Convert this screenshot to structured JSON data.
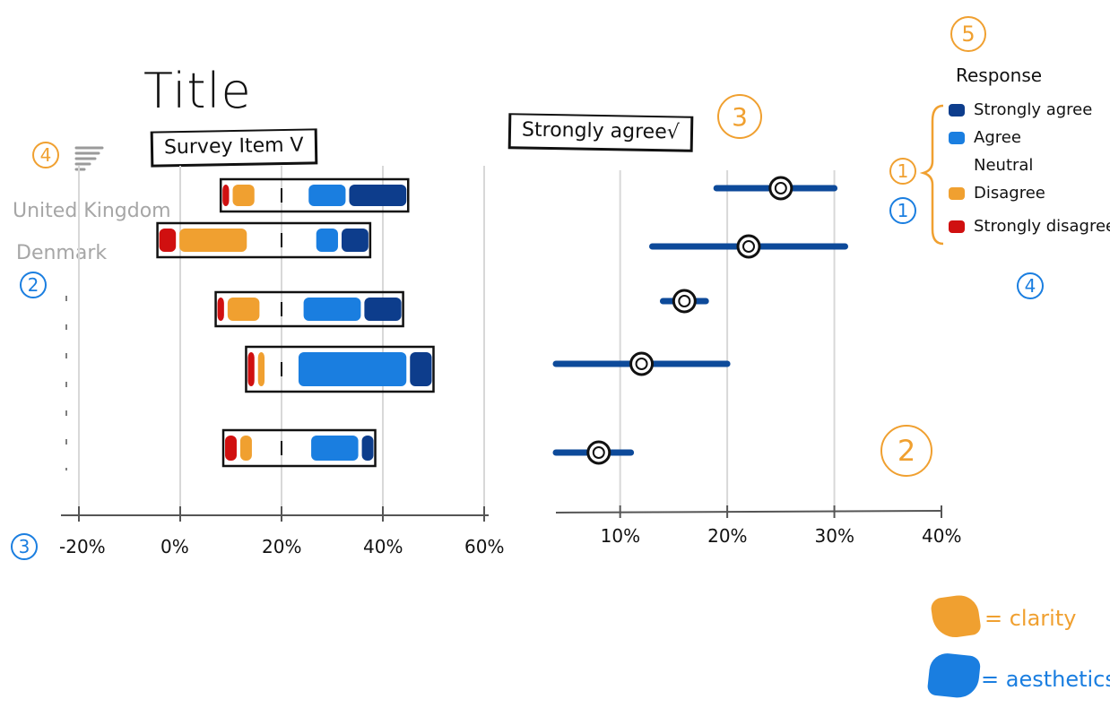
{
  "title": "Title",
  "survey_dropdown": "Survey Item V",
  "response_dropdown": "Strongly agree√",
  "countries": [
    "United Kingdom",
    "Denmark"
  ],
  "legend": {
    "title": "Response",
    "items": [
      {
        "label": "Strongly agree",
        "color": "#0d3d8c"
      },
      {
        "label": "Agree",
        "color": "#1a7ee0"
      },
      {
        "label": "Neutral",
        "color": "#ffffff"
      },
      {
        "label": "Disagree",
        "color": "#f0a030"
      },
      {
        "label": "Strongly disagree",
        "color": "#d01010"
      }
    ]
  },
  "left_axis_ticks": [
    "-20%",
    "0%",
    "20%",
    "40%",
    "60%"
  ],
  "right_axis_ticks": [
    "10%",
    "20%",
    "30%",
    "40%"
  ],
  "annotations": {
    "orange": [
      "4",
      "3",
      "1",
      "2",
      "5"
    ],
    "blue": [
      "2",
      "3",
      "1",
      "4"
    ]
  },
  "key": {
    "clarity": "= clarity",
    "aesthetics": "= aesthetics",
    "clarity_color": "#f0a030",
    "aesthetics_color": "#1a7ee0"
  },
  "chart_data": [
    {
      "type": "bar",
      "categories": [
        "United Kingdom",
        "Denmark",
        "",
        "",
        ""
      ],
      "series": [
        {
          "name": "Strongly disagree",
          "values": [
            2,
            4,
            2,
            2,
            3
          ]
        },
        {
          "name": "Disagree",
          "values": [
            5,
            14,
            7,
            2,
            3
          ]
        },
        {
          "name": "Neutral",
          "values": [
            10,
            13,
            8,
            6,
            11
          ]
        },
        {
          "name": "Agree",
          "values": [
            8,
            5,
            12,
            22,
            10
          ]
        },
        {
          "name": "Strongly agree",
          "values": [
            12,
            6,
            8,
            5,
            3
          ]
        }
      ],
      "neutral_midpoint": 20,
      "xlim": [
        -20,
        60
      ],
      "grid": true
    },
    {
      "type": "scatter",
      "categories": [
        "United Kingdom",
        "Denmark",
        "",
        "",
        ""
      ],
      "values": [
        25,
        22,
        16,
        12,
        8
      ],
      "ranges": [
        [
          19,
          30
        ],
        [
          13,
          31
        ],
        [
          14,
          18
        ],
        [
          4,
          20
        ],
        [
          4,
          11
        ]
      ],
      "xlim": [
        4,
        40
      ],
      "grid": true
    }
  ]
}
